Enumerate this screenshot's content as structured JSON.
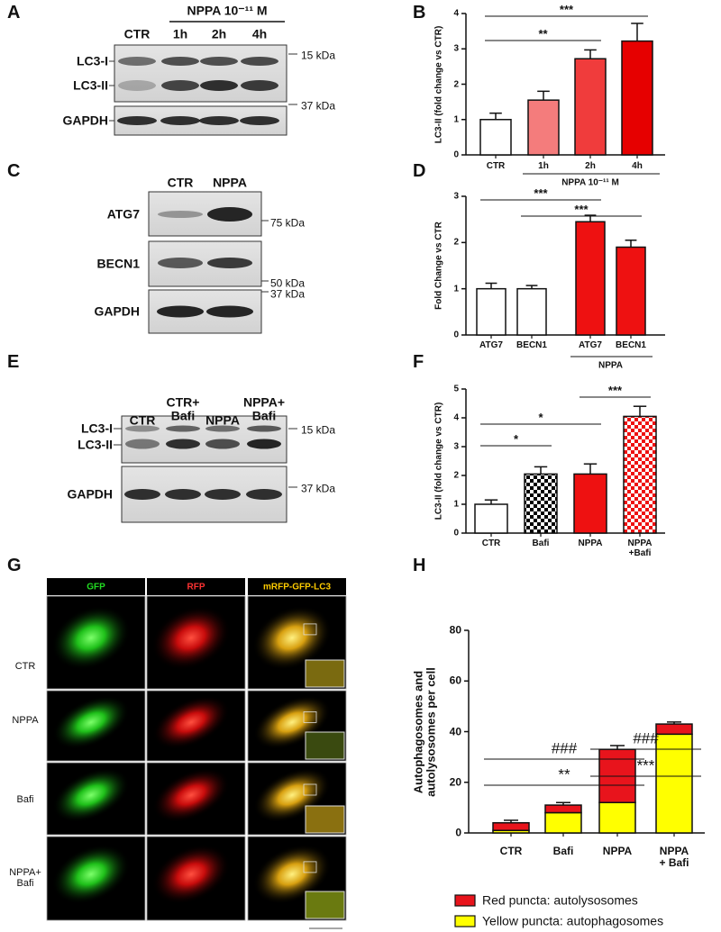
{
  "panel_labels": [
    "A",
    "B",
    "C",
    "D",
    "E",
    "F",
    "G",
    "H"
  ],
  "blot_a": {
    "header": "NPPA 10⁻¹¹ M",
    "lanes": [
      "CTR",
      "1h",
      "2h",
      "4h"
    ],
    "rows": [
      "LC3-I",
      "LC3-II",
      "GAPDH"
    ],
    "markers": [
      "15 kDa",
      "37 kDa"
    ]
  },
  "blot_c": {
    "lanes": [
      "CTR",
      "NPPA"
    ],
    "rows": [
      "ATG7",
      "BECN1",
      "GAPDH"
    ],
    "markers": [
      "75 kDa",
      "50 kDa",
      "37 kDa"
    ]
  },
  "blot_e": {
    "lanes": [
      "CTR",
      "CTR+\nBafi",
      "NPPA",
      "NPPA+\nBafi"
    ],
    "rows": [
      "LC3-I",
      "LC3-II",
      "GAPDH"
    ],
    "markers": [
      "15 kDa",
      "37 kDa"
    ]
  },
  "micrographs": {
    "channels": [
      "GFP",
      "RFP",
      "mRFP-GFP-LC3"
    ],
    "rows": [
      "CTR",
      "NPPA",
      "Bafi",
      "NPPA+\nBafi"
    ]
  },
  "chart_data": [
    {
      "type": "bar",
      "ylabel": "LC3-II (fold change vs CTR)",
      "categories": [
        "CTR",
        "1h",
        "2h",
        "4h"
      ],
      "group_label": "NPPA 10⁻¹¹ M",
      "values": [
        1.0,
        1.55,
        2.72,
        3.22
      ],
      "errors": [
        0.18,
        0.25,
        0.25,
        0.5
      ],
      "colors": [
        "#ffffff",
        "#f47c7c",
        "#f03c3c",
        "#e60000"
      ],
      "ylim": [
        0,
        4
      ],
      "yticks": [
        0,
        1,
        2,
        3,
        4
      ],
      "significance": [
        "**",
        "***"
      ]
    },
    {
      "type": "bar",
      "ylabel": "Fold Change vs CTR",
      "categories": [
        "ATG7",
        "BECN1",
        "ATG7",
        "BECN1"
      ],
      "group_label": "NPPA",
      "values": [
        1.0,
        1.0,
        2.45,
        1.9
      ],
      "errors": [
        0.12,
        0.07,
        0.14,
        0.15
      ],
      "colors": [
        "#ffffff",
        "#ffffff",
        "#ee1111",
        "#ee1111"
      ],
      "ylim": [
        0,
        3
      ],
      "yticks": [
        0,
        1,
        2,
        3
      ],
      "significance": [
        "***",
        "***"
      ]
    },
    {
      "type": "bar",
      "ylabel": "LC3-II (fold change vs CTR)",
      "categories": [
        "CTR",
        "Bafi",
        "NPPA",
        "NPPA\n+Bafi"
      ],
      "values": [
        1.0,
        2.05,
        2.05,
        4.05
      ],
      "errors": [
        0.15,
        0.25,
        0.35,
        0.35
      ],
      "colors": [
        "#ffffff",
        "#000000",
        "#ee1111",
        "#ee1111"
      ],
      "checkered": [
        false,
        true,
        false,
        true
      ],
      "ylim": [
        0,
        5
      ],
      "yticks": [
        0,
        1,
        2,
        3,
        4,
        5
      ],
      "significance": [
        "*",
        "*",
        "***"
      ]
    },
    {
      "type": "stacked_bar",
      "ylabel": "Autophagosomes and\nautolysosomes per cell",
      "categories": [
        "CTR",
        "Bafi",
        "NPPA",
        "NPPA\n+ Bafi"
      ],
      "series": [
        {
          "name": "Yellow puncta: autophagosomes",
          "color": "#ffff00",
          "values": [
            1,
            8,
            12,
            39
          ],
          "errors": [
            0.5,
            0.8,
            1.2,
            0.8
          ]
        },
        {
          "name": "Red puncta: autolysosomes",
          "color": "#e8141c",
          "values": [
            3,
            3,
            21,
            4
          ],
          "errors": [
            1,
            1,
            1.5,
            0.8
          ]
        }
      ],
      "ylim": [
        0,
        80
      ],
      "yticks": [
        0,
        20,
        40,
        60,
        80
      ],
      "significance": [
        "###",
        "**",
        "###",
        "***"
      ]
    }
  ]
}
